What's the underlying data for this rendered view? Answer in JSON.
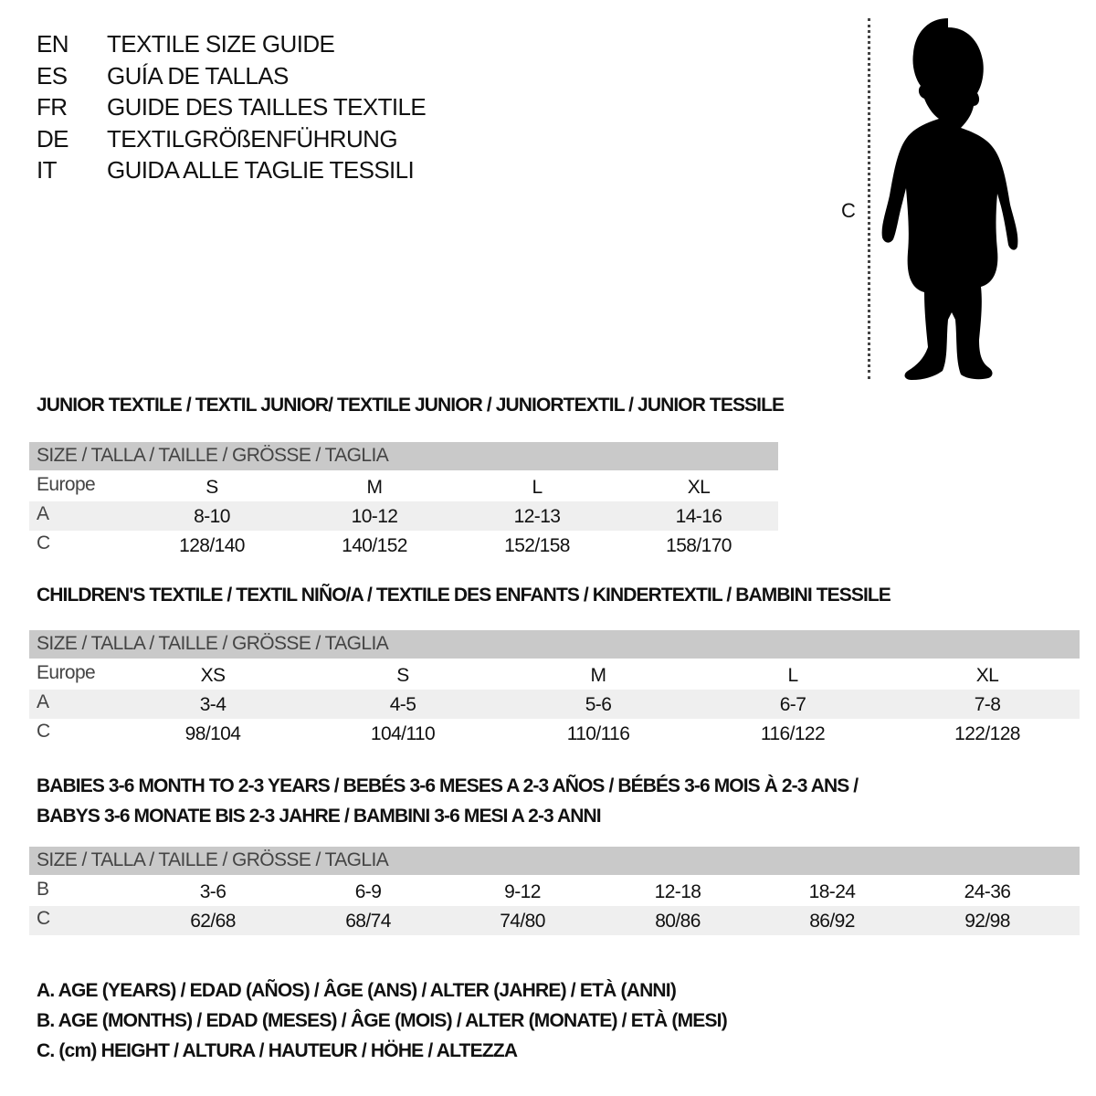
{
  "titles": [
    {
      "code": "EN",
      "text": "TEXTILE SIZE GUIDE"
    },
    {
      "code": "ES",
      "text": "GUÍA DE TALLAS"
    },
    {
      "code": "FR",
      "text": "GUIDE DES TAILLES TEXTILE"
    },
    {
      "code": "DE",
      "text": "TEXTILGRÖßENFÜHRUNG"
    },
    {
      "code": "IT",
      "text": "GUIDA ALLE TAGLIE TESSILI"
    }
  ],
  "figure": {
    "measure_label": "C",
    "icon": "child-silhouette"
  },
  "sections": [
    {
      "heading": [
        "JUNIOR TEXTILE / TEXTIL JUNIOR/ TEXTILE JUNIOR / JUNIORTEXTIL / JUNIOR TESSILE"
      ],
      "header": "SIZE / TALLA / TAILLE / GRÖSSE / TAGLIA",
      "rows": [
        {
          "label": "Europe",
          "cells": [
            "S",
            "M",
            "L",
            "XL"
          ]
        },
        {
          "label": "A",
          "cells": [
            "8-10",
            "10-12",
            "12-13",
            "14-16"
          ]
        },
        {
          "label": "C",
          "cells": [
            "128/140",
            "140/152",
            "152/158",
            "158/170"
          ]
        }
      ]
    },
    {
      "heading": [
        "CHILDREN'S TEXTILE / TEXTIL NIÑO/A / TEXTILE DES ENFANTS / KINDERTEXTIL / BAMBINI TESSILE"
      ],
      "header": "SIZE / TALLA / TAILLE / GRÖSSE / TAGLIA",
      "rows": [
        {
          "label": "Europe",
          "cells": [
            "XS",
            "S",
            "M",
            "L",
            "XL"
          ]
        },
        {
          "label": "A",
          "cells": [
            "3-4",
            "4-5",
            "5-6",
            "6-7",
            "7-8"
          ]
        },
        {
          "label": "C",
          "cells": [
            "98/104",
            "104/110",
            "110/116",
            "116/122",
            "122/128"
          ]
        }
      ]
    },
    {
      "heading": [
        "BABIES 3-6 MONTH TO 2-3 YEARS / BEBÉS 3-6 MESES A 2-3 AÑOS / BÉBÉS 3-6 MOIS À 2-3 ANS /",
        "BABYS 3-6 MONATE BIS 2-3 JAHRE / BAMBINI 3-6 MESI A 2-3 ANNI"
      ],
      "header": "SIZE / TALLA / TAILLE / GRÖSSE / TAGLIA",
      "rows": [
        {
          "label": "B",
          "cells": [
            "3-6",
            "6-9",
            "9-12",
            "12-18",
            "18-24",
            "24-36"
          ]
        },
        {
          "label": "C",
          "cells": [
            "62/68",
            "68/74",
            "74/80",
            "80/86",
            "86/92",
            "92/98"
          ]
        }
      ]
    }
  ],
  "legend": [
    "A. AGE (YEARS) / EDAD (AÑOS) / ÂGE (ANS) / ALTER (JAHRE) / ETÀ (ANNI)",
    "B. AGE (MONTHS) / EDAD (MESES) / ÂGE (MOIS) / ALTER (MONATE) / ETÀ (MESI)",
    "C. (cm) HEIGHT / ALTURA / HAUTEUR / HÖHE / ALTEZZA"
  ]
}
